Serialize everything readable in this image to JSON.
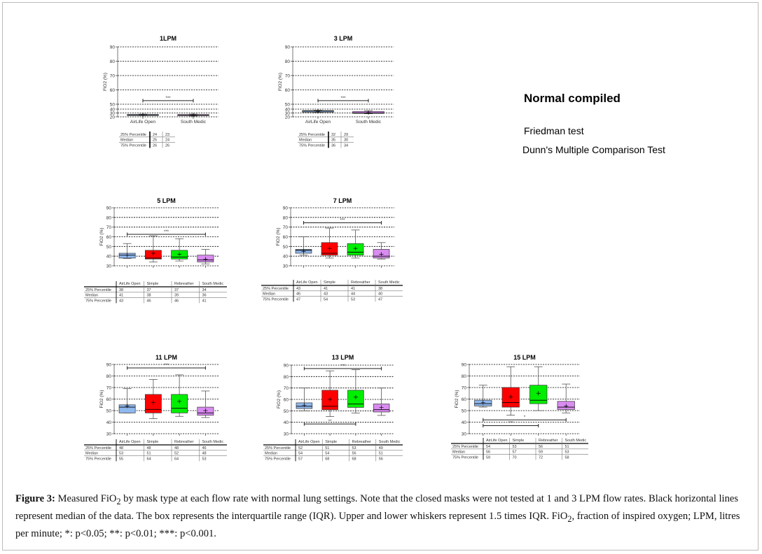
{
  "side_text": {
    "title": "Normal  compiled",
    "test1": "Friedman test",
    "test2": "Dunn's Multiple Comparison Test"
  },
  "caption": {
    "label": "Figure 3:",
    "p1": " Measured FiO",
    "sub1": "2",
    "p2": " by mask type at each flow rate with normal lung settings. Note that the closed masks were not tested at 1 and 3 LPM flow rates. Black horizontal lines represent median of the data. The box represents the interquartile range (IQR). Upper and lower whiskers represent 1.5 times IQR. FiO",
    "sub2": "2",
    "p3": ", fraction of inspired oxygen; LPM, litres per minute; *: p<0.05; **: p<0.01; ***: p<0.001."
  },
  "colors": {
    "AirLife Open": "#8fb8ee",
    "Simple": "#ff0000",
    "Rebreather": "#00ee00",
    "South  Medic": "#d98cf0"
  },
  "chart_data": [
    {
      "type": "box",
      "title": "1LPM",
      "ylabel": "FiO2 (%)",
      "ylim": [
        20,
        90
      ],
      "yticks": [
        20,
        30,
        40,
        50,
        60,
        70,
        80,
        90
      ],
      "categories": [
        "AirLife Open",
        "South  Medic"
      ],
      "q1": [
        24,
        23
      ],
      "median": [
        25,
        24
      ],
      "q3": [
        26,
        26
      ],
      "whisker_low": [
        23,
        22
      ],
      "whisker_high": [
        27,
        27
      ],
      "mean": [
        25,
        24.5
      ],
      "significance": [
        {
          "from": 0,
          "to": 1,
          "label": "***",
          "y": 52.5
        }
      ],
      "table": {
        "rows": [
          "25% Percentile",
          "Median",
          "75% Percentile"
        ],
        "values": [
          [
            "24",
            "23"
          ],
          [
            "25",
            "24"
          ],
          [
            "26",
            "26"
          ]
        ]
      }
    },
    {
      "type": "box",
      "title": "3 LPM",
      "ylabel": "FiO2 (%)",
      "ylim": [
        20,
        90
      ],
      "yticks": [
        20,
        30,
        40,
        50,
        60,
        70,
        80,
        90
      ],
      "categories": [
        "AirLife Open",
        "South  Medic"
      ],
      "q1": [
        32,
        29
      ],
      "median": [
        35,
        30
      ],
      "q3": [
        36,
        34
      ],
      "whisker_low": [
        31,
        28
      ],
      "whisker_high": [
        37,
        36
      ],
      "mean": [
        34,
        31
      ],
      "significance": [
        {
          "from": 0,
          "to": 1,
          "label": "***",
          "y": 52.5
        }
      ],
      "table": {
        "rows": [
          "25% Percentile",
          "Median",
          "75% Percentile"
        ],
        "values": [
          [
            "32",
            "29"
          ],
          [
            "35",
            "30"
          ],
          [
            "36",
            "34"
          ]
        ]
      }
    },
    {
      "type": "box",
      "title": "5 LPM",
      "ylabel": "FiO2 (%)",
      "ylim": [
        30,
        90
      ],
      "yticks": [
        30,
        40,
        50,
        60,
        70,
        80,
        90
      ],
      "categories": [
        "AirLife Open",
        "Simple",
        "Rebreather",
        "South  Medic"
      ],
      "q1": [
        38,
        37,
        37,
        34
      ],
      "median": [
        41,
        38,
        39,
        36
      ],
      "q3": [
        43,
        46,
        46,
        41
      ],
      "whisker_low": [
        37.5,
        34,
        35,
        32
      ],
      "whisker_high": [
        53,
        61,
        58,
        47
      ],
      "mean": [
        41,
        43,
        42,
        37
      ],
      "significance": [
        {
          "from": 0,
          "to": 3,
          "label": "***",
          "y": 62.5
        }
      ],
      "table": {
        "rows": [
          "25% Percentile",
          "Median",
          "75% Percentile"
        ],
        "values": [
          [
            "38",
            "37",
            "37",
            "34"
          ],
          [
            "41",
            "38",
            "39",
            "36"
          ],
          [
            "43",
            "46",
            "46",
            "41"
          ]
        ]
      }
    },
    {
      "type": "box",
      "title": "7 LPM",
      "ylabel": "FiO2 (%)",
      "ylim": [
        30,
        90
      ],
      "yticks": [
        30,
        40,
        50,
        60,
        70,
        80,
        90
      ],
      "categories": [
        "AirLife Open",
        "Simple",
        "Rebreather",
        "South  Medic"
      ],
      "q1": [
        43,
        41,
        41,
        38
      ],
      "median": [
        46,
        43,
        44,
        40
      ],
      "q3": [
        47,
        54,
        53,
        47
      ],
      "whisker_low": [
        41,
        38,
        38,
        37
      ],
      "whisker_high": [
        60,
        69,
        67,
        54
      ],
      "mean": [
        45,
        48,
        48,
        42
      ],
      "significance": [
        {
          "from": 0,
          "to": 3,
          "label": "***",
          "y": 74.5
        }
      ],
      "table": {
        "rows": [
          "25% Percentile",
          "Median",
          "75% Percentile"
        ],
        "values": [
          [
            "43",
            "41",
            "41",
            "38"
          ],
          [
            "46",
            "43",
            "44",
            "40"
          ],
          [
            "47",
            "54",
            "53",
            "47"
          ]
        ]
      }
    },
    {
      "type": "box",
      "title": "11 LPM",
      "ylabel": "FiO2 (%)",
      "ylim": [
        30,
        90
      ],
      "yticks": [
        30,
        40,
        50,
        60,
        70,
        80,
        90
      ],
      "categories": [
        "AirLife Open",
        "Simple",
        "Rebreather",
        "South  Medic"
      ],
      "q1": [
        48,
        48,
        48,
        46
      ],
      "median": [
        53,
        51,
        52,
        48
      ],
      "q3": [
        55,
        64,
        64,
        53
      ],
      "whisker_low": [
        48,
        43,
        45,
        44
      ],
      "whisker_high": [
        69,
        77,
        81,
        67
      ],
      "mean": [
        54,
        57,
        58,
        50
      ],
      "significance": [
        {
          "from": 0,
          "to": 3,
          "label": "***",
          "y": 87
        }
      ],
      "table": {
        "rows": [
          "25% Percentile",
          "Median",
          "75% Percentile"
        ],
        "values": [
          [
            "48",
            "48",
            "48",
            "46"
          ],
          [
            "53",
            "51",
            "52",
            "48"
          ],
          [
            "55",
            "64",
            "64",
            "53"
          ]
        ]
      }
    },
    {
      "type": "box",
      "title": "13 LPM",
      "ylabel": "FiO2 (%)",
      "ylim": [
        30,
        90
      ],
      "yticks": [
        30,
        40,
        50,
        60,
        70,
        80,
        90
      ],
      "categories": [
        "AirLife Open",
        "Simple",
        "Rebreather",
        "South  Medic"
      ],
      "q1": [
        52,
        51,
        53,
        49
      ],
      "median": [
        54,
        54,
        56,
        51
      ],
      "q3": [
        57,
        68,
        68,
        56
      ],
      "whisker_low": [
        50,
        45,
        48,
        46
      ],
      "whisker_high": [
        70,
        85,
        86,
        70
      ],
      "mean": [
        55,
        60,
        62,
        53
      ],
      "significance": [
        {
          "from": 0,
          "to": 3,
          "label": "***",
          "y": 87
        },
        {
          "from": 0,
          "to": 2,
          "label": "**",
          "y": 38.5
        }
      ],
      "table": {
        "rows": [
          "25% Percentile",
          "Median",
          "75% Percentile"
        ],
        "values": [
          [
            "52",
            "51",
            "53",
            "49"
          ],
          [
            "54",
            "54",
            "56",
            "51"
          ],
          [
            "57",
            "68",
            "68",
            "56"
          ]
        ]
      }
    },
    {
      "type": "box",
      "title": "15 LPM",
      "ylabel": "FiO2 (%)",
      "ylim": [
        30,
        90
      ],
      "yticks": [
        30,
        40,
        50,
        60,
        70,
        80,
        90
      ],
      "categories": [
        "AirLife Open",
        "Simple",
        "Rebreather",
        "South  Medic"
      ],
      "q1": [
        54,
        53,
        56,
        51
      ],
      "median": [
        56,
        57,
        59,
        53
      ],
      "q3": [
        59,
        70,
        72,
        58
      ],
      "whisker_low": [
        53,
        46,
        50,
        48
      ],
      "whisker_high": [
        72,
        88,
        88,
        73
      ],
      "mean": [
        57,
        62,
        65,
        54
      ],
      "significance": [
        {
          "from": 0,
          "to": 3,
          "label": "*",
          "y": 42
        },
        {
          "from": 0,
          "to": 2,
          "label": "***",
          "y": 37
        }
      ],
      "table": {
        "rows": [
          "25% Percentile",
          "Median",
          "75% Percentile"
        ],
        "values": [
          [
            "54",
            "53",
            "56",
            "51"
          ],
          [
            "56",
            "57",
            "59",
            "53"
          ],
          [
            "59",
            "70",
            "72",
            "58"
          ]
        ]
      }
    }
  ]
}
